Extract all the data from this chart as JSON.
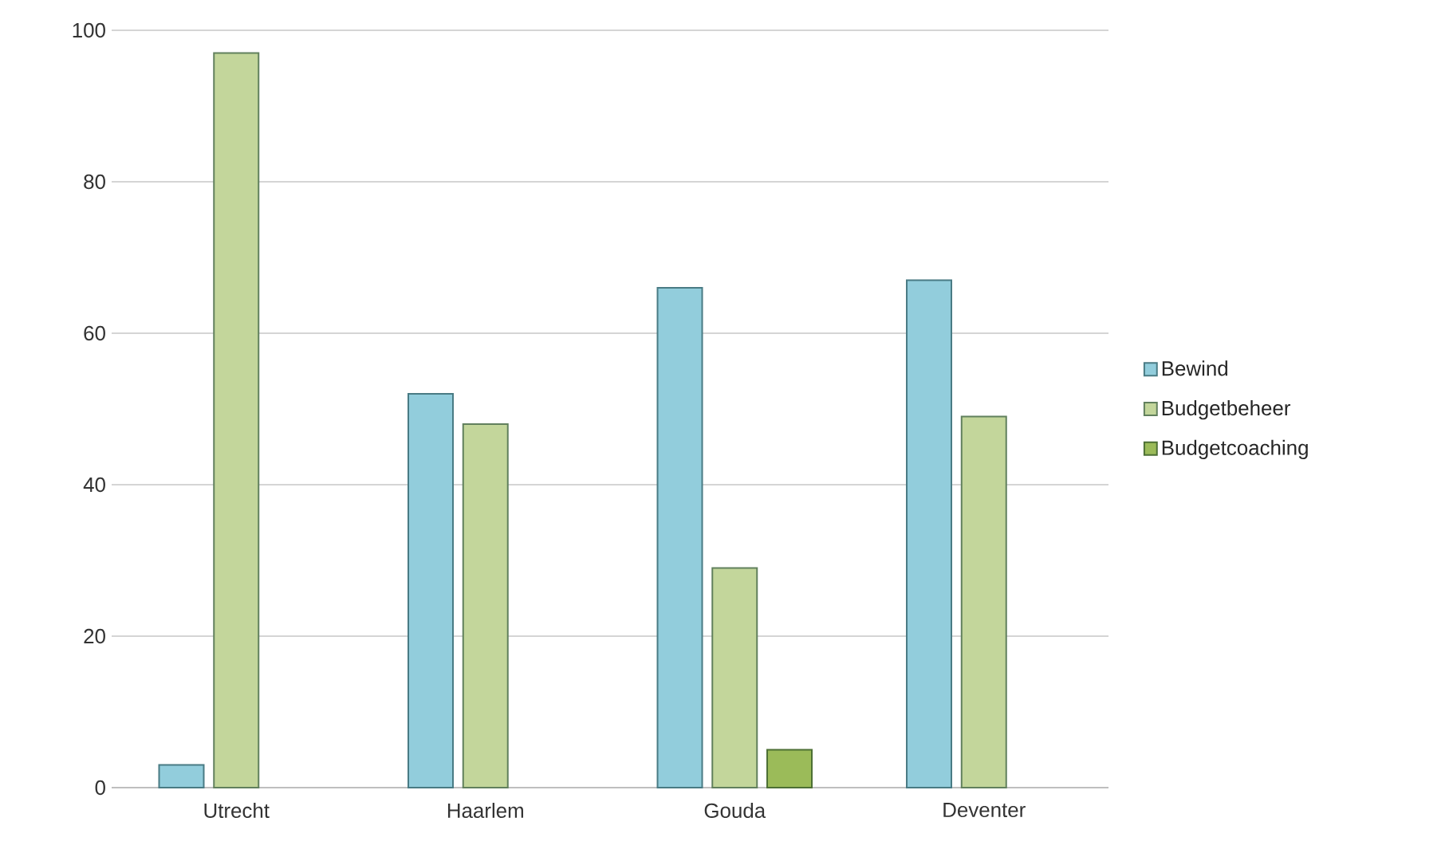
{
  "chart_data": {
    "type": "bar",
    "categories": [
      "Utrecht",
      "Haarlem",
      "Gouda",
      "Deventer"
    ],
    "series": [
      {
        "name": "Bewind",
        "color": "#92cddc",
        "values": [
          3,
          52,
          66,
          67
        ]
      },
      {
        "name": "Budgetbeheer",
        "color": "#c3d69b",
        "values": [
          97,
          48,
          29,
          49
        ]
      },
      {
        "name": "Budgetcoaching",
        "color": "#9bbb59",
        "values": [
          null,
          null,
          5,
          null
        ]
      }
    ],
    "ylim": [
      0,
      100
    ],
    "yticks": [
      0,
      20,
      40,
      60,
      80,
      100
    ],
    "grid": "y",
    "legend": "right"
  }
}
